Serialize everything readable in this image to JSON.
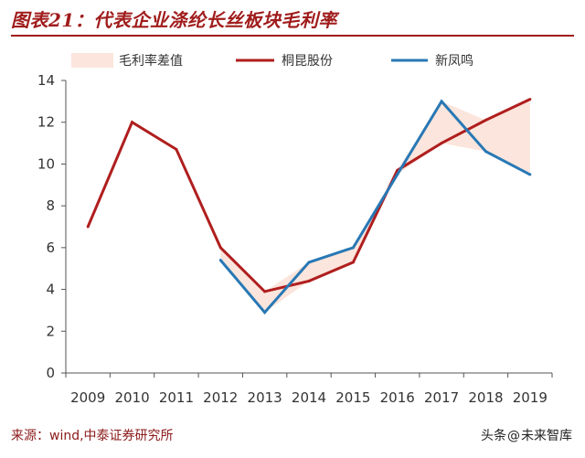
{
  "title": "图表21：代表企业涤纶长丝板块毛利率",
  "source": "来源：wind,中泰证券研究所",
  "watermark": {
    "prefix": "头条",
    "at": "@",
    "handle": "未来智库"
  },
  "colors": {
    "title": "#a01c1c",
    "tongkun": "#b01e1e",
    "xinfengming": "#2878b5",
    "diff_fill": "#fbe5dc",
    "axis": "#555555"
  },
  "chart_data": {
    "type": "line",
    "categories": [
      "2009",
      "2010",
      "2011",
      "2012",
      "2013",
      "2014",
      "2015",
      "2016",
      "2017",
      "2018",
      "2019"
    ],
    "ylim": [
      0,
      14
    ],
    "yticks": [
      0,
      2,
      4,
      6,
      8,
      10,
      12,
      14
    ],
    "grid": false,
    "legend_position": "top",
    "legend": [
      "毛利率差值",
      "桐昆股份",
      "新凤鸣"
    ],
    "series": [
      {
        "name": "桐昆股份",
        "values": [
          7.0,
          12.0,
          10.7,
          6.0,
          3.9,
          4.4,
          5.3,
          9.7,
          11.0,
          12.1,
          13.1
        ]
      },
      {
        "name": "新凤鸣",
        "values": [
          null,
          null,
          null,
          5.4,
          2.9,
          5.3,
          6.0,
          9.5,
          13.0,
          10.6,
          9.5
        ]
      }
    ],
    "difference_band": {
      "name": "毛利率差值",
      "between": [
        "桐昆股份",
        "新凤鸣"
      ]
    }
  }
}
